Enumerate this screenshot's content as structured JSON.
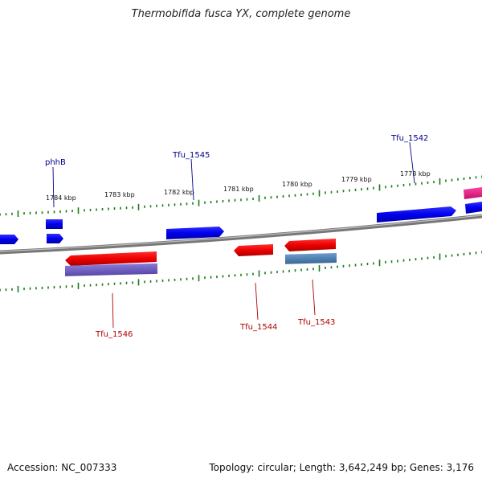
{
  "title": "Thermobifida fusca YX, complete genome",
  "accession_text": "Accession: NC_007333",
  "summary_text": "Topology: circular; Length: 3,642,249 bp; Genes: 3,176",
  "scale_labels": [
    "1784 kbp",
    "1783 kbp",
    "1782 kbp",
    "1781 kbp",
    "1780 kbp",
    "1779 kbp",
    "1778 kbp"
  ],
  "colors": {
    "forward_gene": "#0000ee",
    "reverse_gene": "#ee0000",
    "reverse_cds": "#7060c0",
    "reverse_rna": "#4a80b8",
    "forward_misc": "#ee2288",
    "backbone": "#808080",
    "tick": "#1a7a1a",
    "label_forward": "#00008b",
    "label_reverse": "#b00000"
  },
  "gene_labels": [
    {
      "name": "phhB",
      "strand": "forward"
    },
    {
      "name": "Tfu_1545",
      "strand": "forward"
    },
    {
      "name": "Tfu_1542",
      "strand": "forward"
    },
    {
      "name": "Tfu_1546",
      "strand": "reverse"
    },
    {
      "name": "Tfu_1544",
      "strand": "reverse"
    },
    {
      "name": "Tfu_1543",
      "strand": "reverse"
    }
  ]
}
